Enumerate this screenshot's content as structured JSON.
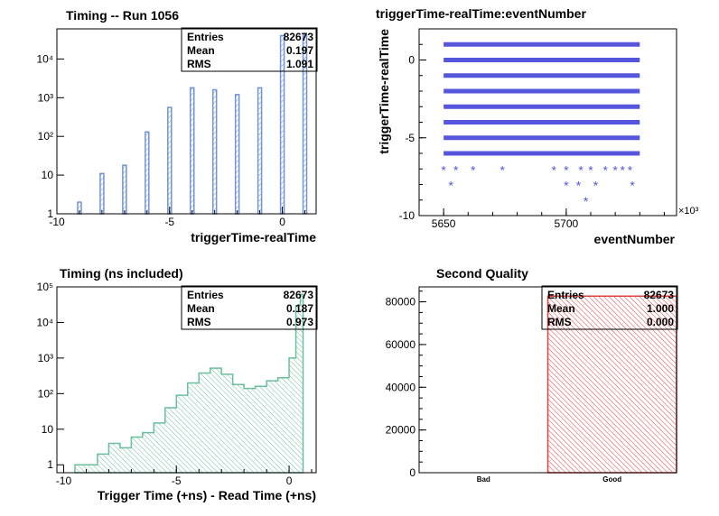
{
  "chart_data": [
    {
      "id": "p1",
      "type": "histogram",
      "title": "Timing -- Run 1056",
      "xlabel": "triggerTime-realTime",
      "ylabel": "",
      "xlim": [
        -10,
        1.5
      ],
      "ylim": [
        1,
        60000
      ],
      "yscale": "log",
      "x_ticks": [
        "-10",
        "-5",
        "0"
      ],
      "y_ticks": [
        "1",
        "10",
        "10²",
        "10³",
        "10⁴"
      ],
      "bars": [
        {
          "x": -9,
          "y": 2
        },
        {
          "x": -8,
          "y": 11
        },
        {
          "x": -7,
          "y": 18
        },
        {
          "x": -6,
          "y": 130
        },
        {
          "x": -5,
          "y": 560
        },
        {
          "x": -4,
          "y": 1800
        },
        {
          "x": -3,
          "y": 1600
        },
        {
          "x": -2,
          "y": 1200
        },
        {
          "x": -1,
          "y": 1800
        },
        {
          "x": 0,
          "y": 40000
        },
        {
          "x": 1,
          "y": 42000
        }
      ],
      "color": "#7094d6",
      "stats": [
        {
          "label": "Entries",
          "value": "82673"
        },
        {
          "label": "Mean",
          "value": "0.197"
        },
        {
          "label": "RMS",
          "value": "1.091"
        }
      ]
    },
    {
      "id": "p2",
      "type": "scatter",
      "title": "triggerTime-realTime:eventNumber",
      "xlabel": "eventNumber",
      "ylabel": "triggerTime-realTime",
      "xlim": [
        5640,
        5745
      ],
      "ylim": [
        -10,
        2
      ],
      "x_ticks": [
        "5650",
        "5700"
      ],
      "x_multiplier": "×10³",
      "y_ticks": [
        "-10",
        "-5",
        "0"
      ],
      "color": "#5555dd",
      "dense_rows": [
        {
          "y": 1,
          "x_range": [
            5650,
            5730
          ]
        },
        {
          "y": 0,
          "x_range": [
            5650,
            5730
          ]
        },
        {
          "y": -1,
          "x_range": [
            5650,
            5730
          ]
        },
        {
          "y": -2,
          "x_range": [
            5650,
            5730
          ]
        },
        {
          "y": -3,
          "x_range": [
            5650,
            5730
          ]
        },
        {
          "y": -4,
          "x_range": [
            5650,
            5730
          ]
        },
        {
          "y": -5,
          "x_range": [
            5650,
            5730
          ]
        },
        {
          "y": -6,
          "x_range": [
            5650,
            5730
          ]
        }
      ],
      "points": [
        {
          "x": 5650,
          "y": -7
        },
        {
          "x": 5655,
          "y": -7
        },
        {
          "x": 5662,
          "y": -7
        },
        {
          "x": 5674,
          "y": -7
        },
        {
          "x": 5695,
          "y": -7
        },
        {
          "x": 5700,
          "y": -7
        },
        {
          "x": 5706,
          "y": -7
        },
        {
          "x": 5710,
          "y": -7
        },
        {
          "x": 5716,
          "y": -7
        },
        {
          "x": 5720,
          "y": -7
        },
        {
          "x": 5723,
          "y": -7
        },
        {
          "x": 5726,
          "y": -7
        },
        {
          "x": 5653,
          "y": -8
        },
        {
          "x": 5700,
          "y": -8
        },
        {
          "x": 5705,
          "y": -8
        },
        {
          "x": 5712,
          "y": -8
        },
        {
          "x": 5727,
          "y": -8
        },
        {
          "x": 5708,
          "y": -9
        }
      ]
    },
    {
      "id": "p3",
      "type": "histogram",
      "title": "Timing (ns included)",
      "xlabel": "Trigger Time (+ns) - Read Time (+ns)",
      "ylabel": "",
      "xlim": [
        -10.3,
        1.2
      ],
      "ylim": [
        0.6,
        100000
      ],
      "yscale": "log",
      "x_ticks": [
        "-10",
        "-5",
        "0"
      ],
      "y_ticks": [
        "1",
        "10",
        "10²",
        "10³",
        "10⁴",
        "10⁵"
      ],
      "step_values": [
        {
          "x": -9.5,
          "y": 1
        },
        {
          "x": -8.5,
          "y": 2
        },
        {
          "x": -8.0,
          "y": 4
        },
        {
          "x": -7.5,
          "y": 3
        },
        {
          "x": -7.0,
          "y": 6
        },
        {
          "x": -6.5,
          "y": 8
        },
        {
          "x": -6.0,
          "y": 15
        },
        {
          "x": -5.5,
          "y": 40
        },
        {
          "x": -5.0,
          "y": 90
        },
        {
          "x": -4.5,
          "y": 200
        },
        {
          "x": -4.0,
          "y": 380
        },
        {
          "x": -3.5,
          "y": 520
        },
        {
          "x": -3.0,
          "y": 350
        },
        {
          "x": -2.5,
          "y": 180
        },
        {
          "x": -2.0,
          "y": 140
        },
        {
          "x": -1.5,
          "y": 160
        },
        {
          "x": -1.0,
          "y": 230
        },
        {
          "x": -0.5,
          "y": 280
        },
        {
          "x": 0.0,
          "y": 1000
        },
        {
          "x": 0.3,
          "y": 30000
        },
        {
          "x": 0.5,
          "y": 62000
        }
      ],
      "color": "#6cbf9c",
      "stats": [
        {
          "label": "Entries",
          "value": "82673"
        },
        {
          "label": "Mean",
          "value": "0.187"
        },
        {
          "label": "RMS",
          "value": "0.973"
        }
      ]
    },
    {
      "id": "p4",
      "type": "bar",
      "title": "Second Quality",
      "xlabel": "",
      "ylabel": "",
      "categories": [
        "Bad",
        "Good"
      ],
      "values": [
        0,
        82673
      ],
      "ylim": [
        0,
        87000
      ],
      "y_ticks": [
        "0",
        "20000",
        "40000",
        "60000",
        "80000"
      ],
      "color": "#e04040",
      "stats": [
        {
          "label": "Entries",
          "value": "82673"
        },
        {
          "label": "Mean",
          "value": "1.000"
        },
        {
          "label": "RMS",
          "value": "0.000"
        }
      ]
    }
  ]
}
